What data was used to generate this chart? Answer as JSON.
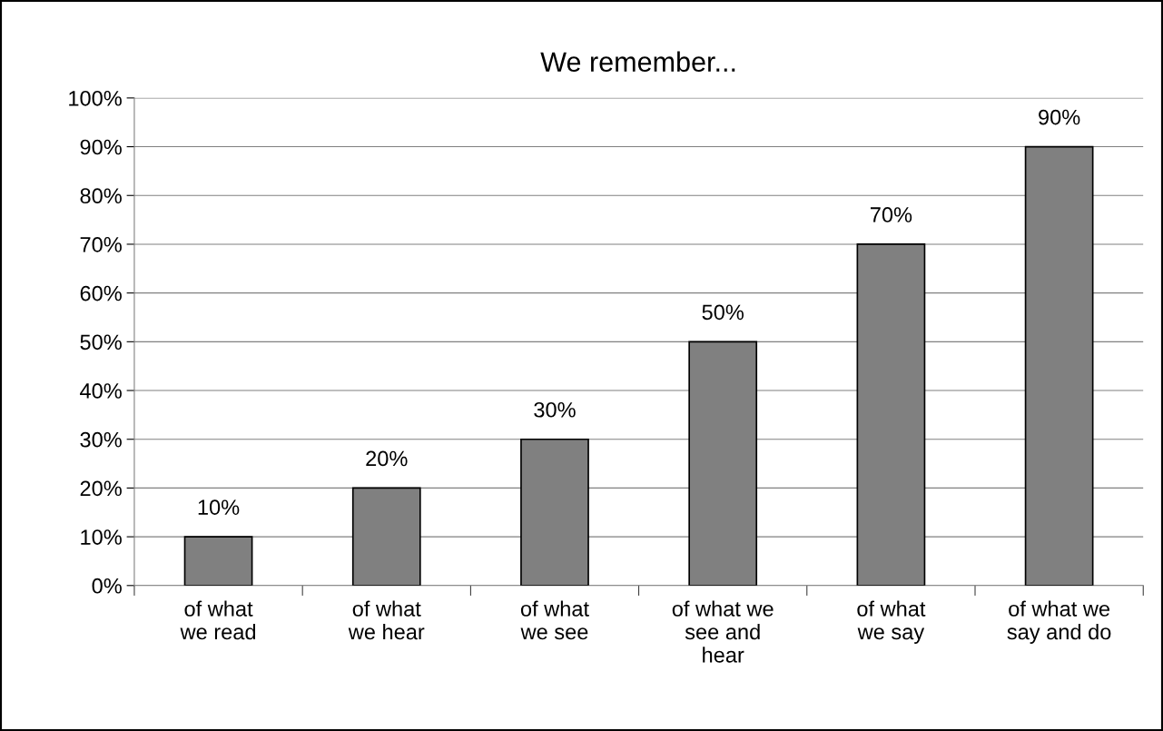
{
  "chart_data": {
    "type": "bar",
    "title": "We remember...",
    "categories": [
      "of what\nwe read",
      "of what\nwe hear",
      "of what\nwe see",
      "of what we\nsee and\nhear",
      "of what\nwe say",
      "of what we\nsay and do"
    ],
    "values": [
      10,
      20,
      30,
      50,
      70,
      90
    ],
    "value_labels": [
      "10%",
      "20%",
      "30%",
      "50%",
      "70%",
      "90%"
    ],
    "color": "#808080",
    "ylim": [
      0,
      100
    ],
    "yticks": [
      {
        "value": 0,
        "label": "0%"
      },
      {
        "value": 10,
        "label": "10%"
      },
      {
        "value": 20,
        "label": "20%"
      },
      {
        "value": 30,
        "label": "30%"
      },
      {
        "value": 40,
        "label": "40%"
      },
      {
        "value": 50,
        "label": "50%"
      },
      {
        "value": 60,
        "label": "60%"
      },
      {
        "value": 70,
        "label": "70%"
      },
      {
        "value": 80,
        "label": "80%"
      },
      {
        "value": 90,
        "label": "90%"
      },
      {
        "value": 100,
        "label": "100%"
      }
    ],
    "grid": "y",
    "legend": false
  }
}
